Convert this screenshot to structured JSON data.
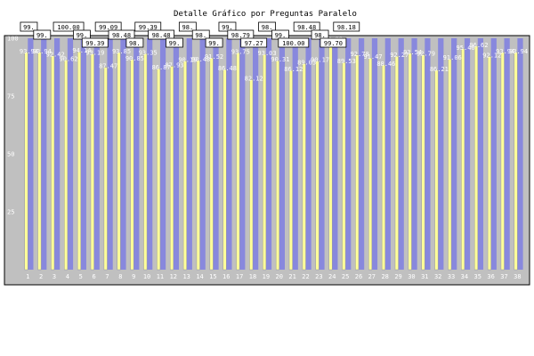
{
  "chart_data": {
    "type": "bar",
    "title": "Detalle Gráfico por Preguntas Paralelo",
    "xlabel": "",
    "ylabel": "",
    "ylim": [
      0,
      100
    ],
    "yticks": [
      25,
      50,
      75,
      100
    ],
    "grid": false,
    "legend": "none",
    "categories": [
      "1",
      "2",
      "3",
      "4",
      "5",
      "6",
      "7",
      "8",
      "9",
      "10",
      "11",
      "12",
      "13",
      "14",
      "15",
      "16",
      "17",
      "18",
      "19",
      "20",
      "21",
      "22",
      "23",
      "24",
      "25",
      "26",
      "27",
      "28",
      "29",
      "30",
      "31",
      "32",
      "33",
      "34",
      "35",
      "36",
      "37",
      "38"
    ],
    "series": [
      {
        "values": [
          100,
          100,
          100,
          100,
          100,
          100,
          100,
          100,
          100,
          100,
          100,
          100,
          100,
          100,
          100,
          100,
          100,
          100,
          100,
          100,
          100,
          100,
          100,
          100,
          100,
          100,
          100,
          100,
          100,
          100,
          100,
          100,
          100,
          100,
          100,
          100,
          100,
          100
        ]
      },
      {
        "values": [
          93.94,
          93.94,
          92.42,
          90.62,
          94.14,
          93.19,
          87.47,
          93.85,
          90.85,
          93.35,
          86.87,
          87.93,
          90.19,
          90.48,
          91.52,
          86.48,
          93.75,
          82.12,
          93.03,
          90.31,
          86.12,
          89.03,
          90.17,
          99.0,
          89.53,
          92.78,
          91.47,
          88.46,
          92.27,
          93.54,
          92.79,
          86.21,
          91.06,
          95.46,
          96.62,
          92.12,
          93.94,
          93.94
        ]
      }
    ],
    "bar_labels": [
      "99.",
      "99.",
      "",
      "100.00",
      "99.",
      "99.39",
      "99.09",
      "98.48",
      "98.",
      "99.39",
      "98.48",
      "99.",
      "98.",
      "98.",
      "99.",
      "99.",
      "98.79",
      "97.27",
      "98.",
      "99.",
      "100.00",
      "98.48",
      "98.",
      "99.70",
      "98.18",
      "",
      "",
      "",
      "",
      "",
      "",
      "",
      "",
      "",
      "",
      "",
      "",
      ""
    ],
    "value_labels": [
      "93.94",
      "93.94",
      "92.42",
      "90.62",
      "94.14",
      "93.19",
      "87.47",
      "93.85",
      "90.85",
      "93.35",
      "86.87",
      "87.93",
      "90.19",
      "90.48",
      "91.52",
      "86.48",
      "93.75",
      "82.12",
      "93.03",
      "90.31",
      "86.12",
      "89.03",
      "90.17",
      "99.00",
      "89.53",
      "92.78",
      "91.47",
      "88.46",
      "92.27",
      "93.54",
      "92.79",
      "86.21",
      "91.06",
      "95.46",
      "96.62",
      "92.12",
      "93.94",
      "93.94"
    ],
    "colors": {
      "plot_bg": "#c0c0c0",
      "bar_full": "#8888dd",
      "bar_value": "#ffff99",
      "bar_value_stroke": "#999999",
      "label_box_bg": "#ffffff",
      "label_box_border": "#000000"
    }
  }
}
